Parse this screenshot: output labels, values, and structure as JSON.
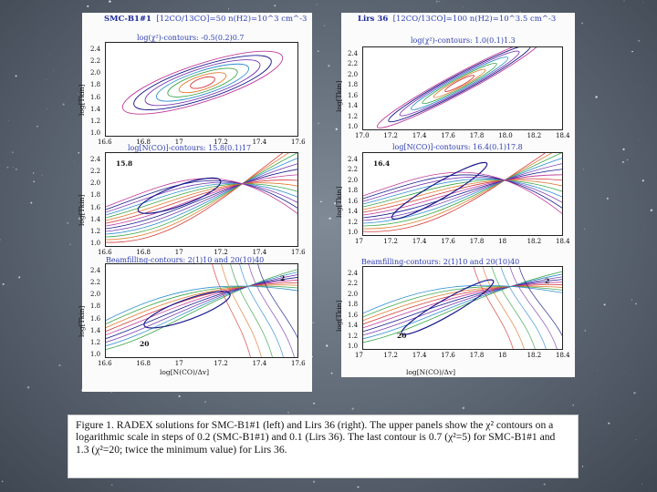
{
  "left": {
    "header_name": "SMC-B1#1",
    "header_params": "[12CO/13CO]=50  n(H2)=10^3 cm^-3",
    "panels": [
      {
        "title": "log(χ²)-contours: -0.5(0.2)0.7",
        "ylabel": "log[Tkin]",
        "yticks": [
          "2.4",
          "2.2",
          "2.0",
          "1.8",
          "1.6",
          "1.4",
          "1.2",
          "1.0"
        ],
        "xticks": [
          "16.6",
          "16.8",
          "17",
          "17.2",
          "17.4",
          "17.6"
        ],
        "annot_a": "",
        "annot_b": ""
      },
      {
        "title": "log[N(CO)]-contours: 15.8(0.1)17",
        "ylabel": "log[Tkin]",
        "yticks": [
          "2.4",
          "2.2",
          "2.0",
          "1.8",
          "1.6",
          "1.4",
          "1.2",
          "1.0"
        ],
        "xticks": [
          "16.6",
          "16.8",
          "17",
          "17.2",
          "17.4",
          "17.6"
        ],
        "annot_a": "15.8",
        "annot_b": ""
      },
      {
        "title": "Beamfilling-contours: 2(1)10 and 20(10)40",
        "ylabel": "log[Tkin]",
        "yticks": [
          "2.4",
          "2.2",
          "2.0",
          "1.8",
          "1.6",
          "1.4",
          "1.2",
          "1.0"
        ],
        "xticks": [
          "16.6",
          "16.8",
          "17",
          "17.2",
          "17.4",
          "17.6"
        ],
        "annot_a": "2",
        "annot_b": "20"
      }
    ],
    "xlabel": "log[N(CO)/Δv]"
  },
  "right": {
    "header_name": "Lirs 36",
    "header_params": "[12CO/13CO]=100  n(H2)=10^3.5 cm^-3",
    "panels": [
      {
        "title": "log(χ²)-contours: 1.0(0.1)1.3",
        "ylabel": "log[Tkin]",
        "yticks": [
          "2.4",
          "2.2",
          "2.0",
          "1.8",
          "1.6",
          "1.4",
          "1.2",
          "1.0"
        ],
        "xticks": [
          "17.0",
          "17.2",
          "17.4",
          "17.6",
          "17.8",
          "18.0",
          "18.2",
          "18.4"
        ],
        "annot_a": "",
        "annot_b": ""
      },
      {
        "title": "log[N(CO)]-contours: 16.4(0.1)17.8",
        "ylabel": "log[Tkin]",
        "yticks": [
          "2.4",
          "2.2",
          "2.0",
          "1.8",
          "1.6",
          "1.4",
          "1.2",
          "1.0"
        ],
        "xticks": [
          "17",
          "17.2",
          "17.4",
          "17.6",
          "17.8",
          "18",
          "18.2",
          "18.4"
        ],
        "annot_a": "16.4",
        "annot_b": ""
      },
      {
        "title": "Beamfilling-contours: 2(1)10 and 20(10)40",
        "ylabel": "log[Tkin]",
        "yticks": [
          "2.4",
          "2.2",
          "2.0",
          "1.8",
          "1.6",
          "1.4",
          "1.2",
          "1.0"
        ],
        "xticks": [
          "17",
          "17.2",
          "17.4",
          "17.6",
          "17.8",
          "18",
          "18.2",
          "18.4"
        ],
        "annot_a": "2",
        "annot_b": "20"
      }
    ],
    "xlabel": "log[N(CO)/Δv]"
  },
  "caption": "Figure 1.  RADEX solutions for SMC-B1#1 (left) and Lirs 36 (right). The upper panels show the χ² contours on a logarithmic scale in steps of 0.2 (SMC-B1#1) and 0.1 (Lirs 36). The last contour is 0.7 (χ²=5) for SMC-B1#1 and 1.3 (χ²=20; twice the minimum value) for Lirs 36.",
  "contour_colors": [
    "#d43a3a",
    "#e07b2e",
    "#3aa64a",
    "#2f8fd0",
    "#7a3fb0",
    "#1a1a8c",
    "#c23c9a"
  ]
}
